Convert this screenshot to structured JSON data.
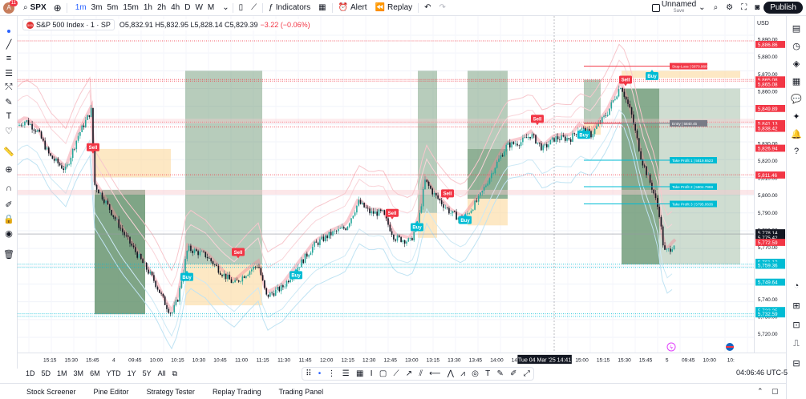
{
  "header": {
    "avatar_letter": "A",
    "avatar_badge": "11",
    "symbol": "SPX",
    "timeframes": [
      "1m",
      "3m",
      "5m",
      "15m",
      "1h",
      "2h",
      "4h",
      "D",
      "W",
      "M"
    ],
    "active_timeframe": "1m",
    "indicators_label": "Indicators",
    "alert_label": "Alert",
    "replay_label": "Replay",
    "layout_name": "Unnamed",
    "save_label": "Save",
    "publish_label": "Publish"
  },
  "legend": {
    "title": "S&P 500 Index · 1 · SP",
    "logo_text": "500",
    "ohlc": "O5,832.91 H5,832.95 L5,828.14 C5,829.39",
    "change": "−3.22 (−0.06%)"
  },
  "price_axis": {
    "currency": "USD",
    "ticks": [
      "5,890.00",
      "5,880.00",
      "5,870.00",
      "5,860.00",
      "5,850.00",
      "5,840.00",
      "5,830.00",
      "5,820.00",
      "5,810.00",
      "5,800.00",
      "5,790.00",
      "5,780.00",
      "5,770.00",
      "5,760.00",
      "5,750.00",
      "5,740.00",
      "5,730.00",
      "5,720.00"
    ],
    "labels": [
      {
        "text": "5,886.86",
        "price": 5886.86,
        "bg": "#f23645"
      },
      {
        "text": "5,865.08",
        "price": 5866.4,
        "bg": "#f23645"
      },
      {
        "text": "5,865.08",
        "price": 5863.8,
        "bg": "#f23645"
      },
      {
        "text": "5,849.89",
        "price": 5849.89,
        "bg": "#f23645"
      },
      {
        "text": "5,841.13",
        "price": 5841.13,
        "bg": "#f23645"
      },
      {
        "text": "5,838.42",
        "price": 5838.42,
        "bg": "#f23645"
      },
      {
        "text": "5,826.94",
        "price": 5826.94,
        "bg": "#f23645"
      },
      {
        "text": "5,811.46",
        "price": 5811.46,
        "bg": "#f23645"
      },
      {
        "text": "5,778.14",
        "price": 5778.14,
        "bg": "#131722"
      },
      {
        "text": "5,775.42",
        "price": 5775.42,
        "bg": "#131722"
      },
      {
        "text": "5,772.59",
        "price": 5772.59,
        "bg": "#f23645"
      },
      {
        "text": "5,761.12",
        "price": 5761.12,
        "bg": "#00bcd4"
      },
      {
        "text": "5,759.36",
        "price": 5759.36,
        "bg": "#00bcd4"
      },
      {
        "text": "5,749.64",
        "price": 5749.64,
        "bg": "#00bcd4"
      },
      {
        "text": "5,733.25",
        "price": 5733.25,
        "bg": "#00bcd4"
      },
      {
        "text": "5,732.59",
        "price": 5731.3,
        "bg": "#00bcd4"
      }
    ]
  },
  "time_axis": {
    "ticks": [
      "15:15",
      "15:30",
      "15:45",
      "4",
      "09:45",
      "10:00",
      "10:15",
      "10:30",
      "10:45",
      "11:00",
      "11:15",
      "11:30",
      "11:45",
      "12:00",
      "12:15",
      "12:30",
      "12:45",
      "13:00",
      "13:15",
      "13:30",
      "13:45",
      "14:00",
      "14:15",
      "14:30",
      "14:45",
      "15:00",
      "15:15",
      "15:30",
      "15:45",
      "5",
      "09:45",
      "10:00",
      "10:"
    ],
    "cursor_label": "Tue 04 Mar '25   14:41"
  },
  "signals": [
    {
      "text": "Sell",
      "type": "sell"
    },
    {
      "text": "Buy",
      "type": "buy"
    },
    {
      "text": "Buy",
      "type": "buy"
    },
    {
      "text": "Sell",
      "type": "sell"
    },
    {
      "text": "Buy",
      "type": "buy"
    },
    {
      "text": "Sell",
      "type": "sell"
    },
    {
      "text": "Buy",
      "type": "buy"
    },
    {
      "text": "Sell",
      "type": "sell"
    },
    {
      "text": "Buy",
      "type": "buy"
    },
    {
      "text": "Sell",
      "type": "sell"
    },
    {
      "text": "Buy",
      "type": "buy"
    },
    {
      "text": "Sell",
      "type": "sell"
    }
  ],
  "trade_labels": {
    "stop_loss": "Stop-Loss | 5870.9609",
    "entry": "Entry | 5840.45",
    "tp1": "Take Profit 1 | 5819.6523",
    "tp2": "Take Profit 2 | 5804.7969",
    "tp3": "Take Profit 3 | 5795.0636"
  },
  "range_bar": {
    "ranges": [
      "1D",
      "5D",
      "1M",
      "3M",
      "6M",
      "YTD",
      "1Y",
      "5Y",
      "All"
    ],
    "clock": "04:06:46 UTC-5"
  },
  "bottom_panel": {
    "tabs": [
      "Stock Screener",
      "Pine Editor",
      "Strategy Tester",
      "Replay Trading",
      "Trading Panel"
    ]
  },
  "colors": {
    "up": "#26a69a",
    "down": "#131722",
    "sell": "#f23645",
    "buy": "#00bcd4",
    "zone_green": "#5f8f68",
    "zone_orange": "#fbd89c"
  }
}
